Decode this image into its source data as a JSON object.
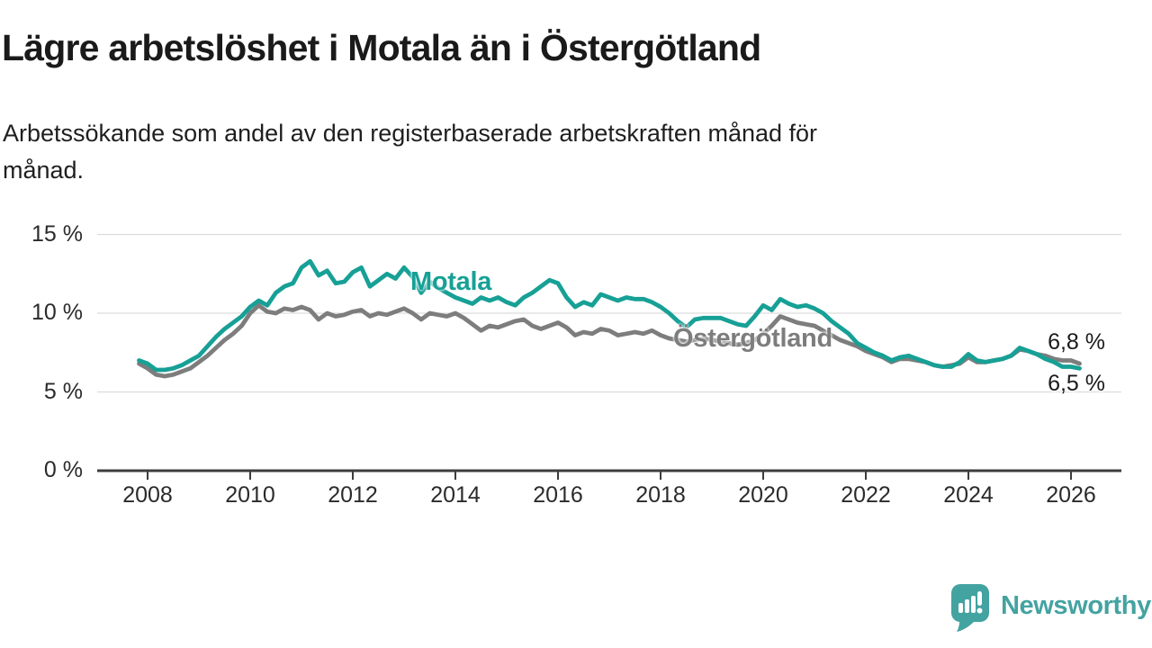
{
  "header": {
    "title": "Lägre arbetslöshet i Motala än i Östergötland",
    "subtitle_line1": "Arbetssökande som andel av den registerbaserade arbetskraften månad för",
    "subtitle_line2": "månad."
  },
  "chart_data": {
    "type": "line",
    "title": "Lägre arbetslöshet i Motala än i Östergötland",
    "subtitle": "Arbetssökande som andel av den registerbaserade arbetskraften månad för månad.",
    "xlabel": "",
    "ylabel": "",
    "grid": true,
    "legend_position": "inline-labels",
    "y_ticks": [
      "0 %",
      "5 %",
      "10 %",
      "15 %"
    ],
    "y_tick_values": [
      0,
      5,
      10,
      15
    ],
    "ylim": [
      0,
      15.3
    ],
    "x_ticks": [
      "2008",
      "2010",
      "2012",
      "2014",
      "2016",
      "2018",
      "2020",
      "2022",
      "2024",
      "2026"
    ],
    "x_tick_values": [
      2008,
      2010,
      2012,
      2014,
      2016,
      2018,
      2020,
      2022,
      2024,
      2026
    ],
    "xlim": [
      2007.05,
      2026.98
    ],
    "x_start": 2007.8333,
    "x_step_years": 0.166667,
    "x_unit": "decimal-year, monthly/bimonthly samples",
    "y_unit": "percent of registered labour force",
    "series": [
      {
        "name": "Östergötland",
        "color": "#7d7d7d",
        "end_label": "6,8 %",
        "end_value": 6.8,
        "values": [
          6.8,
          6.5,
          6.1,
          6.0,
          6.1,
          6.3,
          6.5,
          6.9,
          7.3,
          7.8,
          8.3,
          8.7,
          9.2,
          10.0,
          10.5,
          10.1,
          10.0,
          10.3,
          10.2,
          10.4,
          10.2,
          9.6,
          10.0,
          9.8,
          9.9,
          10.1,
          10.2,
          9.8,
          10.0,
          9.9,
          10.1,
          10.3,
          10.0,
          9.6,
          10.0,
          9.9,
          9.8,
          10.0,
          9.7,
          9.3,
          8.9,
          9.2,
          9.1,
          9.3,
          9.5,
          9.6,
          9.2,
          9.0,
          9.2,
          9.4,
          9.1,
          8.6,
          8.8,
          8.7,
          9.0,
          8.9,
          8.6,
          8.7,
          8.8,
          8.7,
          8.9,
          8.6,
          8.4,
          8.3,
          8.2,
          8.3,
          8.4,
          8.3,
          8.2,
          8.1,
          8.0,
          8.1,
          8.3,
          8.7,
          9.2,
          9.8,
          9.6,
          9.4,
          9.3,
          9.2,
          8.9,
          8.6,
          8.3,
          8.1,
          7.9,
          7.6,
          7.4,
          7.2,
          6.9,
          7.1,
          7.1,
          7.0,
          6.9,
          6.7,
          6.6,
          6.7,
          6.8,
          7.2,
          6.9,
          6.9,
          7.0,
          7.1,
          7.3,
          7.7,
          7.6,
          7.4,
          7.3,
          7.1,
          7.0,
          7.0,
          6.8
        ]
      },
      {
        "name": "Motala",
        "color": "#17a096",
        "end_label": "6,5 %",
        "end_value": 6.5,
        "values": [
          7.0,
          6.8,
          6.4,
          6.4,
          6.5,
          6.7,
          7.0,
          7.3,
          7.9,
          8.5,
          9.0,
          9.4,
          9.8,
          10.4,
          10.8,
          10.5,
          11.3,
          11.7,
          11.9,
          12.9,
          13.3,
          12.4,
          12.7,
          11.9,
          12.0,
          12.6,
          12.9,
          11.7,
          12.1,
          12.5,
          12.2,
          12.9,
          12.3,
          11.3,
          12.0,
          11.6,
          11.3,
          11.0,
          10.8,
          10.6,
          11.0,
          10.8,
          11.0,
          10.7,
          10.5,
          11.0,
          11.3,
          11.7,
          12.1,
          11.9,
          11.0,
          10.4,
          10.7,
          10.5,
          11.2,
          11.0,
          10.8,
          11.0,
          10.9,
          10.9,
          10.7,
          10.4,
          10.0,
          9.5,
          9.1,
          9.6,
          9.7,
          9.7,
          9.7,
          9.5,
          9.3,
          9.2,
          9.8,
          10.5,
          10.2,
          10.9,
          10.6,
          10.4,
          10.5,
          10.3,
          10.0,
          9.5,
          9.1,
          8.7,
          8.1,
          7.8,
          7.5,
          7.3,
          7.0,
          7.2,
          7.3,
          7.1,
          6.9,
          6.7,
          6.6,
          6.6,
          6.9,
          7.4,
          7.0,
          6.9,
          7.0,
          7.1,
          7.3,
          7.8,
          7.6,
          7.4,
          7.1,
          6.9,
          6.6,
          6.6,
          6.5
        ]
      }
    ]
  },
  "colors": {
    "motala_line": "#17a096",
    "ostergotland_line": "#7d7d7d",
    "gridline": "#dcdcdc",
    "axis": "#3d3d3d",
    "text": "#1a1a1a",
    "logo_teal": "#43a3a1"
  },
  "logo": {
    "text": "Newsworthy"
  }
}
